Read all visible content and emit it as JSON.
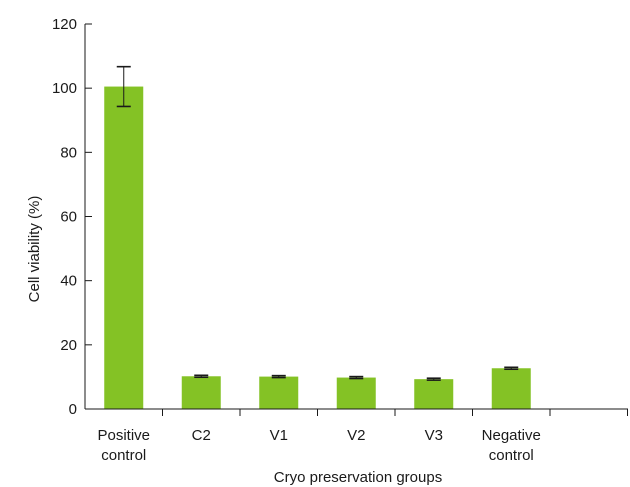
{
  "chart_data": {
    "type": "bar",
    "title": "",
    "xlabel": "Cryo preservation groups",
    "ylabel": "Cell viability (%)",
    "ylim": [
      0,
      120
    ],
    "yticks": [
      0,
      20,
      40,
      60,
      80,
      100,
      120
    ],
    "categories": [
      [
        "Positive",
        "control"
      ],
      [
        "C2"
      ],
      [
        "V1"
      ],
      [
        "V2"
      ],
      [
        "V3"
      ],
      [
        "Negative",
        "control"
      ]
    ],
    "values": [
      100.5,
      10.2,
      10.1,
      9.8,
      9.3,
      12.7
    ],
    "errors": [
      6.2,
      0.3,
      0.3,
      0.3,
      0.3,
      0.3
    ],
    "bar_color": "#84c225",
    "grid": false,
    "legend": "none"
  }
}
